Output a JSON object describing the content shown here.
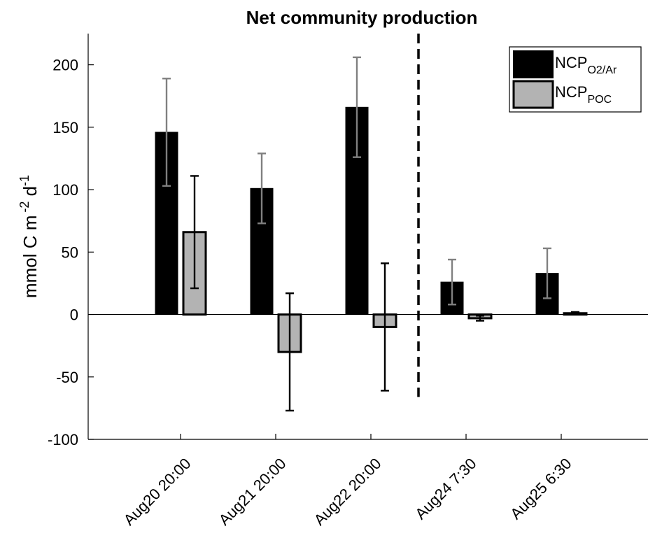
{
  "chart_data": {
    "type": "bar",
    "title": "Net community production",
    "ylabel": {
      "main": "mmol C m",
      "exp1": "-2",
      "unit": " d",
      "exp2": "-1"
    },
    "xlabel": "",
    "ylim": [
      -100,
      225
    ],
    "yticks": [
      -100,
      -50,
      0,
      50,
      100,
      150,
      200
    ],
    "categories": [
      "Aug20 20:00",
      "Aug21 20:00",
      "Aug22 20:00",
      "Aug24 7:30",
      "Aug25 6:30"
    ],
    "series": [
      {
        "name": "NCP_O2/Ar",
        "legend_main": "NCP",
        "legend_sub": "O2/Ar",
        "color": "#000000",
        "edge_color": "#000000",
        "error_color": "#808080",
        "values": [
          146,
          101,
          166,
          26,
          33
        ],
        "errors": [
          43,
          28,
          40,
          18,
          20
        ]
      },
      {
        "name": "NCP_POC",
        "legend_main": "NCP",
        "legend_sub": "POC",
        "color": "#b3b3b3",
        "edge_color": "#000000",
        "error_color": "#000000",
        "values": [
          66,
          -30,
          -10,
          -3,
          1
        ],
        "errors": [
          45,
          47,
          51,
          2,
          1
        ]
      }
    ],
    "divider_after_category": 2,
    "legend_position": "top-right",
    "grid": false
  }
}
